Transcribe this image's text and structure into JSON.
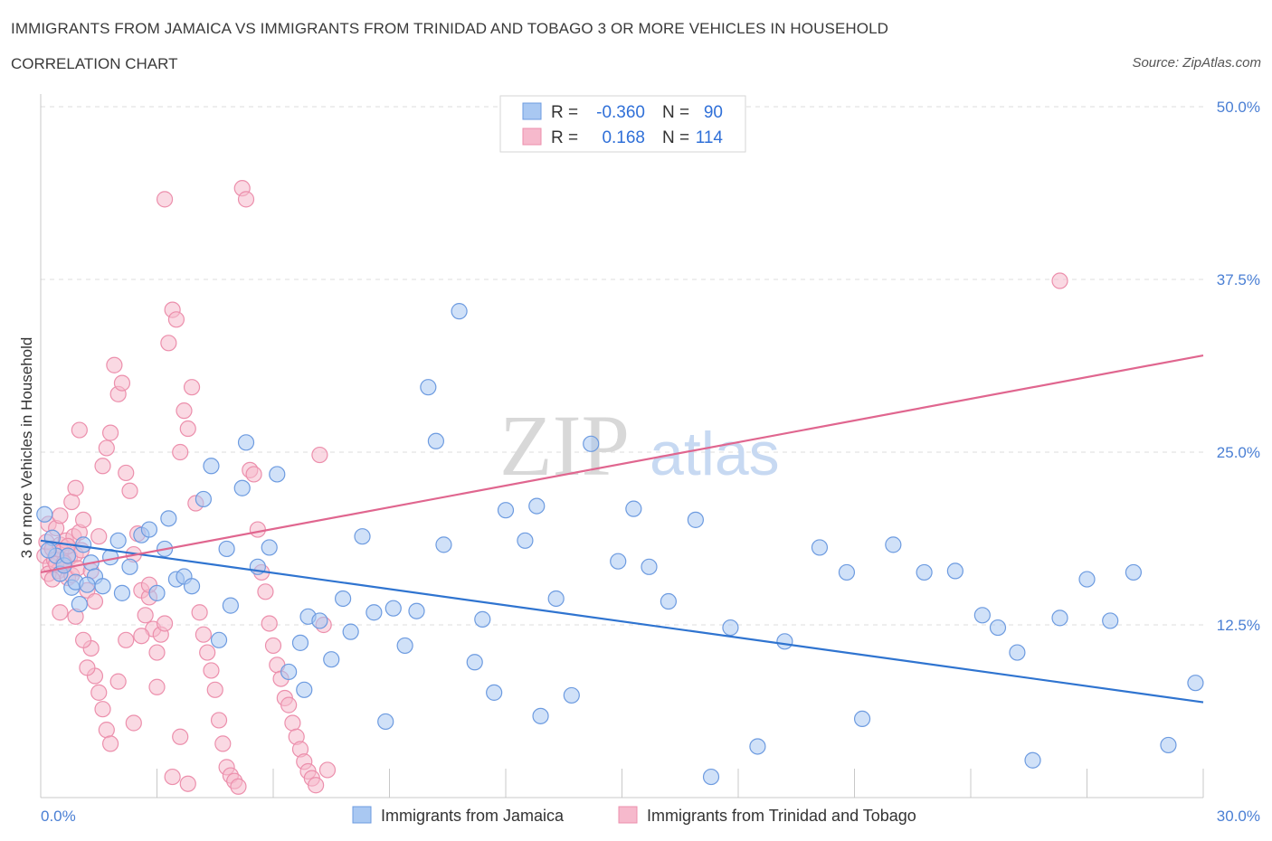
{
  "header": {
    "title": "IMMIGRANTS FROM JAMAICA VS IMMIGRANTS FROM TRINIDAD AND TOBAGO 3 OR MORE VEHICLES IN HOUSEHOLD",
    "subtitle": "CORRELATION CHART",
    "source": "Source: ZipAtlas.com"
  },
  "watermark": {
    "zip": "ZIP",
    "atlas": "atlas"
  },
  "colors": {
    "blue_fill": "#a9c8f2",
    "blue_stroke": "#6d9be0",
    "blue_line": "#2f74d0",
    "pink_fill": "#f6b9cc",
    "pink_stroke": "#ec8fac",
    "pink_line": "#e0668f",
    "grid": "#dddddd",
    "tick_text": "#4a7fd4"
  },
  "legend": {
    "rows": [
      {
        "r_label": "R = ",
        "r_value": "-0.360",
        "n_label": "N = ",
        "n_value": "90"
      },
      {
        "r_label": "R = ",
        "r_value": "0.168",
        "n_label": "N = ",
        "n_value": "114"
      }
    ]
  },
  "chart_data": {
    "type": "scatter",
    "title": "IMMIGRANTS FROM JAMAICA VS IMMIGRANTS FROM TRINIDAD AND TOBAGO 3 OR MORE VEHICLES IN HOUSEHOLD",
    "xlabel": "",
    "ylabel": "3 or more Vehicles in Household",
    "xlim": [
      0,
      30
    ],
    "ylim": [
      0,
      50
    ],
    "x_tick_labels": [
      "0.0%",
      "30.0%"
    ],
    "y_ticks": [
      12.5,
      25.0,
      37.5,
      50.0
    ],
    "y_tick_labels": [
      "12.5%",
      "25.0%",
      "37.5%",
      "50.0%"
    ],
    "grid": true,
    "legend_position": "top-center",
    "series": [
      {
        "name": "Immigrants from Jamaica",
        "r": -0.36,
        "n": 90,
        "trend": {
          "x0": 0,
          "y0": 18.6,
          "x1": 30,
          "y1": 6.9
        },
        "points": [
          [
            0.1,
            20.5
          ],
          [
            0.3,
            18.8
          ],
          [
            0.4,
            17.5
          ],
          [
            0.5,
            16.2
          ],
          [
            0.6,
            16.8
          ],
          [
            0.8,
            15.2
          ],
          [
            0.9,
            15.6
          ],
          [
            1.0,
            14.0
          ],
          [
            1.1,
            18.3
          ],
          [
            1.3,
            17.0
          ],
          [
            1.4,
            16.0
          ],
          [
            1.6,
            15.3
          ],
          [
            1.8,
            17.4
          ],
          [
            2.0,
            18.6
          ],
          [
            2.3,
            16.7
          ],
          [
            2.6,
            19.0
          ],
          [
            2.8,
            19.4
          ],
          [
            3.0,
            14.8
          ],
          [
            3.2,
            18.0
          ],
          [
            3.5,
            15.8
          ],
          [
            3.7,
            16.0
          ],
          [
            3.9,
            15.3
          ],
          [
            4.2,
            21.6
          ],
          [
            4.4,
            24.0
          ],
          [
            4.6,
            11.4
          ],
          [
            4.9,
            13.9
          ],
          [
            5.2,
            22.4
          ],
          [
            5.3,
            25.7
          ],
          [
            5.6,
            16.7
          ],
          [
            5.9,
            18.1
          ],
          [
            6.1,
            23.4
          ],
          [
            6.4,
            9.1
          ],
          [
            6.7,
            11.2
          ],
          [
            6.9,
            13.1
          ],
          [
            7.2,
            12.8
          ],
          [
            7.5,
            10.0
          ],
          [
            7.8,
            14.4
          ],
          [
            8.0,
            12.0
          ],
          [
            8.3,
            18.9
          ],
          [
            8.6,
            13.4
          ],
          [
            8.9,
            5.5
          ],
          [
            9.1,
            13.7
          ],
          [
            9.4,
            11.0
          ],
          [
            9.7,
            13.5
          ],
          [
            10.0,
            29.7
          ],
          [
            10.2,
            25.8
          ],
          [
            10.4,
            18.3
          ],
          [
            10.8,
            35.2
          ],
          [
            11.2,
            9.8
          ],
          [
            11.4,
            12.9
          ],
          [
            11.7,
            7.6
          ],
          [
            12.0,
            20.8
          ],
          [
            12.5,
            18.6
          ],
          [
            12.9,
            5.9
          ],
          [
            13.3,
            14.4
          ],
          [
            13.7,
            7.4
          ],
          [
            14.2,
            25.6
          ],
          [
            14.9,
            17.1
          ],
          [
            15.3,
            20.9
          ],
          [
            15.7,
            16.7
          ],
          [
            16.2,
            14.2
          ],
          [
            16.9,
            20.1
          ],
          [
            17.3,
            1.5
          ],
          [
            17.8,
            12.3
          ],
          [
            18.5,
            3.7
          ],
          [
            19.2,
            11.3
          ],
          [
            20.1,
            18.1
          ],
          [
            20.8,
            16.3
          ],
          [
            21.2,
            5.7
          ],
          [
            22.0,
            18.3
          ],
          [
            22.8,
            16.3
          ],
          [
            23.6,
            16.4
          ],
          [
            24.3,
            13.2
          ],
          [
            24.7,
            12.3
          ],
          [
            25.2,
            10.5
          ],
          [
            25.6,
            2.7
          ],
          [
            26.3,
            13.0
          ],
          [
            27.0,
            15.8
          ],
          [
            27.6,
            12.8
          ],
          [
            28.2,
            16.3
          ],
          [
            29.1,
            3.8
          ],
          [
            29.8,
            8.3
          ],
          [
            0.2,
            17.9
          ],
          [
            0.7,
            17.5
          ],
          [
            1.2,
            15.4
          ],
          [
            2.1,
            14.8
          ],
          [
            3.3,
            20.2
          ],
          [
            4.8,
            18.0
          ],
          [
            6.8,
            7.8
          ],
          [
            12.8,
            21.1
          ]
        ]
      },
      {
        "name": "Immigrants from Trinidad and Tobago",
        "r": 0.168,
        "n": 114,
        "trend": {
          "x0": 0,
          "y0": 16.3,
          "x1": 30,
          "y1": 32.0
        },
        "points": [
          [
            0.1,
            17.5
          ],
          [
            0.15,
            18.5
          ],
          [
            0.2,
            19.8
          ],
          [
            0.25,
            16.8
          ],
          [
            0.3,
            18.0
          ],
          [
            0.35,
            17.2
          ],
          [
            0.4,
            19.5
          ],
          [
            0.45,
            16.4
          ],
          [
            0.5,
            18.3
          ],
          [
            0.55,
            17.8
          ],
          [
            0.6,
            16.9
          ],
          [
            0.65,
            18.6
          ],
          [
            0.7,
            15.9
          ],
          [
            0.75,
            17.4
          ],
          [
            0.8,
            16.1
          ],
          [
            0.85,
            18.9
          ],
          [
            0.9,
            17.6
          ],
          [
            0.95,
            16.6
          ],
          [
            1.0,
            19.2
          ],
          [
            1.05,
            17.9
          ],
          [
            0.2,
            16.2
          ],
          [
            0.3,
            15.8
          ],
          [
            0.4,
            16.9
          ],
          [
            0.5,
            20.4
          ],
          [
            0.6,
            17.0
          ],
          [
            0.7,
            18.2
          ],
          [
            0.8,
            21.4
          ],
          [
            0.9,
            22.4
          ],
          [
            1.0,
            26.6
          ],
          [
            1.1,
            20.1
          ],
          [
            1.2,
            15.0
          ],
          [
            1.3,
            16.4
          ],
          [
            1.4,
            14.2
          ],
          [
            1.5,
            18.9
          ],
          [
            1.6,
            24.0
          ],
          [
            1.7,
            25.3
          ],
          [
            1.8,
            26.4
          ],
          [
            1.9,
            31.3
          ],
          [
            2.0,
            29.2
          ],
          [
            2.1,
            30.0
          ],
          [
            2.2,
            23.5
          ],
          [
            2.3,
            22.2
          ],
          [
            2.4,
            17.6
          ],
          [
            2.5,
            19.1
          ],
          [
            2.6,
            15.0
          ],
          [
            2.7,
            13.2
          ],
          [
            2.8,
            14.5
          ],
          [
            2.9,
            12.2
          ],
          [
            3.0,
            10.5
          ],
          [
            3.1,
            11.8
          ],
          [
            3.2,
            43.3
          ],
          [
            3.3,
            32.9
          ],
          [
            3.4,
            35.3
          ],
          [
            3.5,
            34.6
          ],
          [
            3.6,
            25.0
          ],
          [
            3.7,
            28.0
          ],
          [
            3.8,
            26.7
          ],
          [
            3.9,
            29.7
          ],
          [
            4.0,
            21.3
          ],
          [
            4.1,
            13.4
          ],
          [
            4.2,
            11.8
          ],
          [
            4.3,
            10.5
          ],
          [
            4.4,
            9.2
          ],
          [
            4.5,
            7.8
          ],
          [
            4.6,
            5.6
          ],
          [
            4.7,
            3.9
          ],
          [
            4.8,
            2.2
          ],
          [
            4.9,
            1.6
          ],
          [
            5.0,
            1.2
          ],
          [
            5.1,
            0.8
          ],
          [
            5.2,
            44.1
          ],
          [
            5.3,
            43.3
          ],
          [
            5.4,
            23.7
          ],
          [
            5.5,
            23.4
          ],
          [
            5.6,
            19.4
          ],
          [
            5.7,
            16.3
          ],
          [
            5.8,
            14.9
          ],
          [
            5.9,
            12.6
          ],
          [
            6.0,
            11.0
          ],
          [
            6.1,
            9.6
          ],
          [
            6.2,
            8.6
          ],
          [
            6.3,
            7.2
          ],
          [
            6.4,
            6.7
          ],
          [
            6.5,
            5.4
          ],
          [
            6.6,
            4.4
          ],
          [
            6.7,
            3.5
          ],
          [
            6.8,
            2.6
          ],
          [
            6.9,
            1.9
          ],
          [
            7.0,
            1.4
          ],
          [
            7.1,
            0.9
          ],
          [
            7.2,
            24.8
          ],
          [
            7.3,
            12.5
          ],
          [
            7.4,
            2.0
          ],
          [
            1.3,
            10.8
          ],
          [
            1.4,
            8.8
          ],
          [
            1.5,
            7.6
          ],
          [
            1.6,
            6.4
          ],
          [
            1.7,
            4.9
          ],
          [
            1.8,
            3.9
          ],
          [
            2.0,
            8.4
          ],
          [
            2.2,
            11.4
          ],
          [
            2.4,
            5.4
          ],
          [
            2.6,
            11.7
          ],
          [
            2.8,
            15.4
          ],
          [
            3.0,
            8.0
          ],
          [
            3.2,
            12.6
          ],
          [
            3.4,
            1.5
          ],
          [
            3.6,
            4.4
          ],
          [
            3.8,
            1.0
          ],
          [
            26.3,
            37.4
          ],
          [
            0.5,
            13.4
          ],
          [
            0.9,
            13.1
          ],
          [
            1.1,
            11.4
          ],
          [
            1.2,
            9.4
          ]
        ]
      }
    ]
  },
  "bottom_legend": {
    "items": [
      {
        "label": "Immigrants from Jamaica"
      },
      {
        "label": "Immigrants from Trinidad and Tobago"
      }
    ]
  }
}
